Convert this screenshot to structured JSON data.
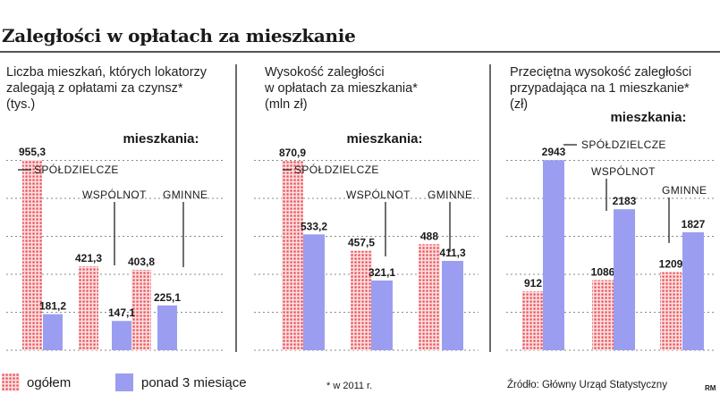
{
  "title": "Zaległości w opłatach za mieszkanie",
  "legend": {
    "ogolem": "ogółem",
    "ponad": "ponad 3 miesiące"
  },
  "colors": {
    "ogolem": "#e8505a",
    "ponad": "#9b9ef0"
  },
  "footnote": "* w 2011 r.",
  "source": "Źródło: Główny Urząd Statystyczny",
  "credit": "RM",
  "chart_data": [
    {
      "type": "bar",
      "subtitle": [
        "Liczba mieszkań, których lokatorzy",
        "zalegają z opłatami za czynsz*",
        "(tys.)"
      ],
      "group_label": "mieszkania:",
      "categories": [
        "SPÓŁDZIELCZE",
        "WSPÓLNOT",
        "GMINNE"
      ],
      "series": [
        {
          "name": "ogółem",
          "values": [
            955.3,
            421.3,
            403.8
          ],
          "labels": [
            "955,3",
            "421,3",
            "403,8"
          ]
        },
        {
          "name": "ponad 3 miesiące",
          "values": [
            181.2,
            147.1,
            225.1
          ],
          "labels": [
            "181,2",
            "147,1",
            "225,1"
          ]
        }
      ],
      "ylim": [
        0,
        960
      ]
    },
    {
      "type": "bar",
      "subtitle": [
        "Wysokość zaległości",
        "w opłatach za mieszkania*",
        "(mln zł)"
      ],
      "group_label": "mieszkania:",
      "categories": [
        "SPÓŁDZIELCZE",
        "WSPÓLNOT",
        "GMINNE"
      ],
      "series": [
        {
          "name": "ogółem",
          "values": [
            870.9,
            457.5,
            488
          ],
          "labels": [
            "870,9",
            "457,5",
            "488"
          ]
        },
        {
          "name": "ponad 3 miesiące",
          "values": [
            533.2,
            321.1,
            411.3
          ],
          "labels": [
            "533,2",
            "321,1",
            "411,3"
          ]
        }
      ],
      "ylim": [
        0,
        880
      ]
    },
    {
      "type": "bar",
      "subtitle": [
        "Przeciętna wysokość zaległości",
        "przypadająca na 1 mieszkanie*",
        "(zł)"
      ],
      "group_label": "mieszkania:",
      "categories": [
        "SPÓŁDZIELCZE",
        "WSPÓLNOT",
        "GMINNE"
      ],
      "series": [
        {
          "name": "ogółem",
          "values": [
            912,
            1086,
            1209
          ],
          "labels": [
            "912",
            "1086",
            "1209"
          ]
        },
        {
          "name": "ponad 3 miesiące",
          "values": [
            2943,
            2183,
            1827
          ],
          "labels": [
            "2943",
            "2183",
            "1827"
          ]
        }
      ],
      "ylim": [
        0,
        2960
      ]
    }
  ]
}
